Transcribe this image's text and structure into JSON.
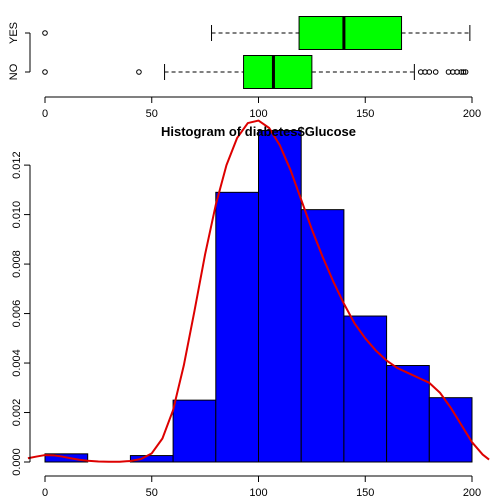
{
  "colors": {
    "histogram_fill": "#0000FF",
    "box_fill": "#00FF00",
    "density_line": "#DD0000",
    "outline": "#000000",
    "background": "#FFFFFF"
  },
  "chart_data": [
    {
      "type": "box",
      "orientation": "horizontal",
      "xlim": [
        0,
        200
      ],
      "x_ticks": [
        0,
        50,
        100,
        150,
        200
      ],
      "x_tick_labels": [
        "0",
        "50",
        "100",
        "150",
        "200"
      ],
      "groups": [
        {
          "label": "NO",
          "whisker_low": 56,
          "q1": 93,
          "median": 107,
          "q3": 125,
          "whisker_high": 173,
          "outliers": [
            0,
            44,
            176,
            178,
            180,
            183,
            189,
            191,
            193,
            195,
            196,
            197
          ]
        },
        {
          "label": "YES",
          "whisker_low": 78,
          "q1": 119,
          "median": 140,
          "q3": 167,
          "whisker_high": 199,
          "outliers": [
            0
          ]
        }
      ]
    },
    {
      "type": "bar",
      "subtype": "histogram",
      "title": "Histogram of diabetes$Glucose",
      "xlim": [
        0,
        200
      ],
      "ylim": [
        0,
        0.0135
      ],
      "x_ticks": [
        0,
        50,
        100,
        150,
        200
      ],
      "x_tick_labels": [
        "0",
        "50",
        "100",
        "150",
        "200"
      ],
      "y_ticks": [
        0,
        0.002,
        0.004,
        0.006,
        0.008,
        0.01,
        0.012
      ],
      "y_tick_labels": [
        "0.000",
        "0.002",
        "0.004",
        "0.006",
        "0.008",
        "0.010",
        "0.012"
      ],
      "bins": [
        {
          "from": 0,
          "to": 20,
          "density": 0.00033
        },
        {
          "from": 20,
          "to": 40,
          "density": 0
        },
        {
          "from": 40,
          "to": 60,
          "density": 0.00026
        },
        {
          "from": 60,
          "to": 80,
          "density": 0.0025
        },
        {
          "from": 80,
          "to": 100,
          "density": 0.0109
        },
        {
          "from": 100,
          "to": 120,
          "density": 0.0134
        },
        {
          "from": 120,
          "to": 140,
          "density": 0.0102
        },
        {
          "from": 140,
          "to": 160,
          "density": 0.0059
        },
        {
          "from": 160,
          "to": 180,
          "density": 0.0039
        },
        {
          "from": 180,
          "to": 200,
          "density": 0.0026
        }
      ],
      "density_curve": {
        "x": [
          -8,
          -4,
          0,
          4,
          8,
          12,
          16,
          20,
          25,
          30,
          35,
          40,
          45,
          50,
          55,
          60,
          65,
          70,
          75,
          80,
          85,
          90,
          95,
          100,
          105,
          110,
          115,
          120,
          125,
          130,
          135,
          140,
          145,
          150,
          155,
          160,
          165,
          170,
          175,
          180,
          185,
          190,
          195,
          200,
          205,
          208
        ],
        "y": [
          0.00015,
          0.00022,
          0.00028,
          0.00027,
          0.00022,
          0.00015,
          9e-05,
          5e-05,
          2e-05,
          1e-05,
          1e-05,
          4e-05,
          0.00012,
          0.00035,
          0.00095,
          0.0021,
          0.0039,
          0.0061,
          0.0084,
          0.0104,
          0.012,
          0.0131,
          0.0137,
          0.0138,
          0.0135,
          0.0128,
          0.0118,
          0.0106,
          0.0094,
          0.0083,
          0.0073,
          0.0064,
          0.0056,
          0.005,
          0.0045,
          0.0041,
          0.0038,
          0.0036,
          0.0034,
          0.0032,
          0.0028,
          0.0022,
          0.0015,
          0.0008,
          0.0003,
          0.0001
        ]
      }
    }
  ]
}
